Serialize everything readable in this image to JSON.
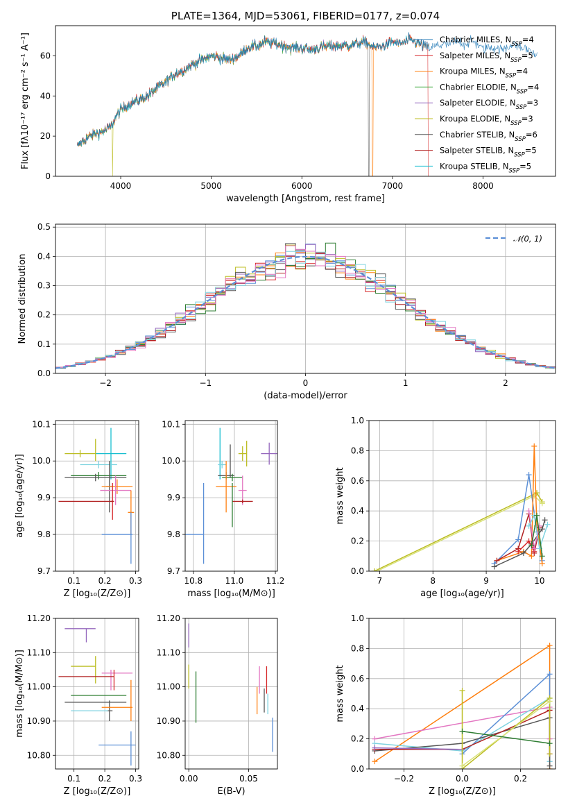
{
  "chart_data": [
    {
      "id": "spectrum",
      "type": "line",
      "title": "PLATE=1364, MJD=53061, FIBERID=0177, z=0.074",
      "xlabel": "wavelength [Angstrom, rest frame]",
      "ylabel": "Flux [fλ10⁻¹⁷ erg cm⁻² s⁻¹ A⁻¹]",
      "xlim": [
        3280,
        8800
      ],
      "ylim": [
        0,
        75
      ],
      "xticks": [
        4000,
        5000,
        6000,
        7000,
        8000
      ],
      "yticks": [
        0,
        20,
        40,
        60
      ],
      "legend_position": "top-right",
      "spectrum_knots": {
        "x": [
          3520,
          3600,
          3700,
          3800,
          3900,
          3950,
          4000,
          4100,
          4200,
          4300,
          4400,
          4500,
          4600,
          4700,
          4800,
          4900,
          5000,
          5100,
          5200,
          5300,
          5400,
          5500,
          5600,
          5700,
          5800,
          5900,
          6000,
          6100,
          6200,
          6300,
          6400,
          6500,
          6600,
          6700,
          6800,
          6900,
          7000,
          7100,
          7200,
          7300,
          7400,
          7500,
          7600,
          7700,
          7800,
          7900,
          8000,
          8100,
          8200,
          8300,
          8400,
          8500,
          8600
        ],
        "y": [
          15,
          18,
          21,
          22,
          25,
          30,
          33,
          36,
          38,
          40,
          44,
          47,
          51,
          53,
          56,
          58,
          60,
          59,
          58,
          60,
          64,
          65,
          67,
          66,
          65,
          64,
          64,
          63,
          64,
          65,
          65,
          65,
          66,
          67,
          64,
          65,
          67,
          66,
          68,
          66,
          64,
          65,
          66,
          67,
          66,
          67,
          64,
          64,
          63,
          65,
          65,
          63,
          60
        ]
      },
      "series": [
        {
          "name": "Chabrier MILES, N",
          "sub": "SSP",
          "suffix": "=4",
          "color": "#1f77b4",
          "dips": [],
          "xmax": 8600
        },
        {
          "name": "Salpeter MILES, N",
          "sub": "SSP",
          "suffix": "=5",
          "color": "#d62728",
          "dips": [
            7400
          ],
          "xmax": 7400
        },
        {
          "name": "Kroupa MILES, N",
          "sub": "SSP",
          "suffix": "=4",
          "color": "#ff7f0e",
          "dips": [
            6780
          ],
          "xmax": 7400
        },
        {
          "name": "Chabrier ELODIE, N",
          "sub": "SSP",
          "suffix": "=4",
          "color": "#2ca02c",
          "dips": [],
          "xmax": 6780
        },
        {
          "name": "Salpeter ELODIE, N",
          "sub": "SSP",
          "suffix": "=3",
          "color": "#9467bd",
          "dips": [],
          "xmax": 6780
        },
        {
          "name": "Kroupa ELODIE, N",
          "sub": "SSP",
          "suffix": "=3",
          "color": "#bcbd22",
          "dips": [
            3910
          ],
          "xmax": 6780
        },
        {
          "name": "Chabrier STELIB, N",
          "sub": "SSP",
          "suffix": "=6",
          "color": "#555555",
          "dips": [
            6740
          ],
          "xmax": 7400
        },
        {
          "name": "Salpeter STELIB, N",
          "sub": "SSP",
          "suffix": "=5",
          "color": "#b22222",
          "dips": [],
          "xmax": 7400
        },
        {
          "name": "Kroupa STELIB, N",
          "sub": "SSP",
          "suffix": "=5",
          "color": "#17becf",
          "dips": [],
          "xmax": 7400
        }
      ]
    },
    {
      "id": "residuals",
      "type": "bar",
      "xlabel": "(data-model)/error",
      "ylabel": "Normed distribution",
      "xlim": [
        -2.5,
        2.5
      ],
      "ylim": [
        0,
        0.51
      ],
      "xticks": [
        -2,
        -1,
        0,
        1,
        2
      ],
      "yticks": [
        0.0,
        0.1,
        0.2,
        0.3,
        0.4,
        0.5
      ],
      "grid": true,
      "legend_position": "top-right",
      "model_curve": {
        "label": "𝒩(0, 1)",
        "mean": 0,
        "sigma": 1,
        "color": "#5b8fd6"
      },
      "bin_width": 0.1,
      "series_colors": [
        "#5b8fd6",
        "#d62728",
        "#ff7f0e",
        "#2e7d32",
        "#9467bd",
        "#bcbd22",
        "#555555",
        "#b22222",
        "#7fd3e0",
        "#e377c2"
      ]
    },
    {
      "id": "age-vs-Z",
      "type": "scatter",
      "xlabel": "Z [log₁₀(Z/Z⊙)]",
      "ylabel": "age  [log₁₀(age/yr)]",
      "xlim": [
        0.04,
        0.31
      ],
      "ylim": [
        9.7,
        10.11
      ],
      "xticks": [
        0.1,
        0.2,
        0.3
      ],
      "yticks": [
        9.7,
        9.8,
        9.9,
        10.0,
        10.1
      ],
      "points": [
        {
          "x": 0.22,
          "y": 10.02,
          "xerr": 0.05,
          "yerr": 0.07,
          "color": "#17becf"
        },
        {
          "x": 0.12,
          "y": 10.02,
          "xerr": 0.05,
          "yerr": 0.01,
          "color": "#bcbd22"
        },
        {
          "x": 0.17,
          "y": 10.03,
          "xerr": 0.0,
          "yerr": 0.03,
          "color": "#bcbd22"
        },
        {
          "x": 0.18,
          "y": 9.99,
          "xerr": 0.06,
          "yerr": 0.01,
          "color": "#7fd3e0"
        },
        {
          "x": 0.18,
          "y": 9.96,
          "xerr": 0.09,
          "yerr": 0.01,
          "color": "#2e7d32"
        },
        {
          "x": 0.17,
          "y": 9.955,
          "xerr": 0.1,
          "yerr": 0.01,
          "color": "#555555"
        },
        {
          "x": 0.215,
          "y": 9.93,
          "xerr": 0.01,
          "yerr": 0.07,
          "color": "#555555"
        },
        {
          "x": 0.24,
          "y": 9.93,
          "xerr": 0.05,
          "yerr": 0.02,
          "color": "#ff7f0e"
        },
        {
          "x": 0.235,
          "y": 9.92,
          "xerr": 0.05,
          "yerr": 0.04,
          "color": "#e377c2"
        },
        {
          "x": 0.225,
          "y": 9.89,
          "xerr": 0.005,
          "yerr": 0.05,
          "color": "#d62728"
        },
        {
          "x": 0.14,
          "y": 9.89,
          "xerr": 0.09,
          "yerr": 0.0,
          "color": "#b22222"
        },
        {
          "x": 0.285,
          "y": 9.86,
          "xerr": 0.01,
          "yerr": 0.06,
          "color": "#ff7f0e"
        },
        {
          "x": 0.24,
          "y": 9.8,
          "xerr": 0.05,
          "yerr": 0.0,
          "color": "#5b8fd6"
        },
        {
          "x": 0.285,
          "y": 9.79,
          "xerr": 0.0,
          "yerr": 0.07,
          "color": "#5b8fd6"
        }
      ]
    },
    {
      "id": "age-vs-mass",
      "type": "scatter",
      "xlabel": "mass [log₁₀(M/M⊙)]",
      "ylabel": "",
      "xlim": [
        10.76,
        11.21
      ],
      "ylim": [
        9.7,
        10.11
      ],
      "xticks": [
        10.8,
        11.0,
        11.2
      ],
      "yticks": [
        9.7,
        9.8,
        9.9,
        10.0,
        10.1
      ],
      "points": [
        {
          "x": 10.93,
          "y": 10.02,
          "xerr": 0.0,
          "yerr": 0.07,
          "color": "#17becf"
        },
        {
          "x": 10.94,
          "y": 9.99,
          "xerr": 0.02,
          "yerr": 0.01,
          "color": "#7fd3e0"
        },
        {
          "x": 10.98,
          "y": 10.0,
          "xerr": 0.0,
          "yerr": 0.045,
          "color": "#555555"
        },
        {
          "x": 11.04,
          "y": 10.02,
          "xerr": 0.02,
          "yerr": 0.02,
          "color": "#bcbd22"
        },
        {
          "x": 11.06,
          "y": 10.02,
          "xerr": 0.0,
          "yerr": 0.035,
          "color": "#bcbd22"
        },
        {
          "x": 11.17,
          "y": 10.02,
          "xerr": 0.04,
          "yerr": 0.03,
          "color": "#9467bd"
        },
        {
          "x": 10.96,
          "y": 9.96,
          "xerr": 0.04,
          "yerr": 0.01,
          "color": "#555555"
        },
        {
          "x": 10.99,
          "y": 9.955,
          "xerr": 0.05,
          "yerr": 0.01,
          "color": "#2e7d32"
        },
        {
          "x": 10.96,
          "y": 9.93,
          "xerr": 0.05,
          "yerr": 0.07,
          "color": "#ff7f0e"
        },
        {
          "x": 11.04,
          "y": 9.92,
          "xerr": 0.02,
          "yerr": 0.04,
          "color": "#e377c2"
        },
        {
          "x": 11.04,
          "y": 9.89,
          "xerr": 0.05,
          "yerr": 0.005,
          "color": "#b22222"
        },
        {
          "x": 10.99,
          "y": 9.88,
          "xerr": 0.0,
          "yerr": 0.06,
          "color": "#2e7d32"
        },
        {
          "x": 10.8,
          "y": 9.8,
          "xerr": 0.05,
          "yerr": 0.0,
          "color": "#5b8fd6"
        },
        {
          "x": 10.85,
          "y": 9.83,
          "xerr": 0.0,
          "yerr": 0.11,
          "color": "#5b8fd6"
        }
      ]
    },
    {
      "id": "weight-vs-age",
      "type": "line",
      "xlabel": "age  [log₁₀(age/yr)]",
      "ylabel": "mass weight",
      "xlim": [
        6.8,
        10.3
      ],
      "ylim": [
        0,
        1.0
      ],
      "xticks": [
        7,
        8,
        9,
        10
      ],
      "yticks": [
        0.0,
        0.2,
        0.4,
        0.6,
        0.8,
        1.0
      ],
      "grid": true,
      "series": [
        {
          "color": "#bcbd22",
          "x": [
            6.9,
            9.95,
            10.05
          ],
          "y": [
            0.0,
            0.52,
            0.46
          ]
        },
        {
          "color": "#d9e27a",
          "x": [
            6.95,
            9.9,
            10.05
          ],
          "y": [
            0.0,
            0.5,
            0.45
          ]
        },
        {
          "color": "#5b8fd6",
          "x": [
            9.15,
            9.6,
            9.8,
            9.95,
            10.05
          ],
          "y": [
            0.05,
            0.21,
            0.64,
            0.26,
            0.07
          ]
        },
        {
          "color": "#ff7f0e",
          "x": [
            9.2,
            9.7,
            9.85,
            9.9,
            9.95,
            10.05
          ],
          "y": [
            0.07,
            0.13,
            0.1,
            0.83,
            0.3,
            0.05
          ]
        },
        {
          "color": "#555555",
          "x": [
            9.15,
            9.7,
            9.85,
            10.05,
            10.1
          ],
          "y": [
            0.03,
            0.12,
            0.18,
            0.28,
            0.34
          ]
        },
        {
          "color": "#b22222",
          "x": [
            9.2,
            9.6,
            9.8,
            9.9,
            10.0
          ],
          "y": [
            0.07,
            0.15,
            0.38,
            0.12,
            0.29
          ]
        },
        {
          "color": "#d62728",
          "x": [
            9.6,
            9.8,
            9.9
          ],
          "y": [
            0.13,
            0.2,
            0.13
          ]
        },
        {
          "color": "#e377c2",
          "x": [
            9.8,
            9.9,
            10.0
          ],
          "y": [
            0.4,
            0.15,
            0.3
          ]
        },
        {
          "color": "#7fd3e0",
          "x": [
            9.8,
            9.9,
            10.0,
            10.15
          ],
          "y": [
            0.3,
            0.37,
            0.15,
            0.31
          ]
        },
        {
          "color": "#2e7d32",
          "x": [
            9.85,
            9.95,
            10.05
          ],
          "y": [
            0.17,
            0.37,
            0.1
          ]
        }
      ]
    },
    {
      "id": "mass-vs-Z",
      "type": "scatter",
      "xlabel": "Z [log₁₀(Z/Z⊙)]",
      "ylabel": "mass [log₁₀(M/M⊙)]",
      "xlim": [
        0.04,
        0.31
      ],
      "ylim": [
        10.76,
        11.2
      ],
      "xticks": [
        0.1,
        0.2,
        0.3
      ],
      "yticks": [
        10.8,
        10.9,
        11.0,
        11.1,
        11.2
      ],
      "points": [
        {
          "x": 0.12,
          "y": 11.17,
          "xerr": 0.05,
          "yerr": 0.0,
          "color": "#9467bd"
        },
        {
          "x": 0.14,
          "y": 11.15,
          "xerr": 0.0,
          "yerr": 0.02,
          "color": "#9467bd"
        },
        {
          "x": 0.13,
          "y": 11.06,
          "xerr": 0.04,
          "yerr": 0.0,
          "color": "#bcbd22"
        },
        {
          "x": 0.17,
          "y": 11.05,
          "xerr": 0.0,
          "yerr": 0.04,
          "color": "#bcbd22"
        },
        {
          "x": 0.24,
          "y": 11.04,
          "xerr": 0.05,
          "yerr": 0.0,
          "color": "#e377c2"
        },
        {
          "x": 0.22,
          "y": 11.02,
          "xerr": 0.0,
          "yerr": 0.03,
          "color": "#e377c2"
        },
        {
          "x": 0.14,
          "y": 11.03,
          "xerr": 0.09,
          "yerr": 0.0,
          "color": "#b22222"
        },
        {
          "x": 0.23,
          "y": 11.02,
          "xerr": 0.0,
          "yerr": 0.03,
          "color": "#d62728"
        },
        {
          "x": 0.18,
          "y": 10.975,
          "xerr": 0.09,
          "yerr": 0.0,
          "color": "#2e7d32"
        },
        {
          "x": 0.17,
          "y": 10.955,
          "xerr": 0.1,
          "yerr": 0.0,
          "color": "#555555"
        },
        {
          "x": 0.215,
          "y": 10.93,
          "xerr": 0.01,
          "yerr": 0.03,
          "color": "#555555"
        },
        {
          "x": 0.24,
          "y": 10.94,
          "xerr": 0.05,
          "yerr": 0.0,
          "color": "#ff7f0e"
        },
        {
          "x": 0.285,
          "y": 10.96,
          "xerr": 0.0,
          "yerr": 0.06,
          "color": "#ff7f0e"
        },
        {
          "x": 0.15,
          "y": 10.93,
          "xerr": 0.06,
          "yerr": 0.0,
          "color": "#7fd3e0"
        },
        {
          "x": 0.24,
          "y": 10.83,
          "xerr": 0.06,
          "yerr": 0.0,
          "color": "#5b8fd6"
        },
        {
          "x": 0.285,
          "y": 10.82,
          "xerr": 0.0,
          "yerr": 0.05,
          "color": "#5b8fd6"
        }
      ]
    },
    {
      "id": "mass-vs-EBV",
      "type": "scatter",
      "xlabel": "E(B-V)",
      "ylabel": "",
      "xlim": [
        -0.003,
        0.074
      ],
      "ylim": [
        10.76,
        11.2
      ],
      "xticks": [
        0.0,
        0.05
      ],
      "yticks": [
        10.8,
        10.9,
        11.0,
        11.1,
        11.2
      ],
      "points": [
        {
          "x": 0.0,
          "y": 11.15,
          "xerr": 0.0,
          "yerr": 0.035,
          "color": "#9467bd"
        },
        {
          "x": 0.0,
          "y": 11.03,
          "xerr": 0.0,
          "yerr": 0.035,
          "color": "#bcbd22"
        },
        {
          "x": 0.006,
          "y": 10.97,
          "xerr": 0.0,
          "yerr": 0.075,
          "color": "#2e7d32"
        },
        {
          "x": 0.057,
          "y": 10.96,
          "xerr": 0.0,
          "yerr": 0.04,
          "color": "#ff7f0e"
        },
        {
          "x": 0.059,
          "y": 11.02,
          "xerr": 0.0,
          "yerr": 0.04,
          "color": "#e377c2"
        },
        {
          "x": 0.063,
          "y": 10.96,
          "xerr": 0.0,
          "yerr": 0.035,
          "color": "#555555"
        },
        {
          "x": 0.065,
          "y": 11.02,
          "xerr": 0.0,
          "yerr": 0.04,
          "color": "#d62728"
        },
        {
          "x": 0.066,
          "y": 10.95,
          "xerr": 0.0,
          "yerr": 0.03,
          "color": "#7fd3e0"
        },
        {
          "x": 0.07,
          "y": 10.86,
          "xerr": 0.0,
          "yerr": 0.05,
          "color": "#5b8fd6"
        }
      ]
    },
    {
      "id": "weight-vs-Z",
      "type": "line",
      "xlabel": "Z [log₁₀(Z/Z⊙)]",
      "ylabel": "mass weight",
      "xlim": [
        -0.32,
        0.32
      ],
      "ylim": [
        0,
        1.0
      ],
      "xticks": [
        -0.2,
        0.0,
        0.2
      ],
      "yticks": [
        0.0,
        0.2,
        0.4,
        0.6,
        0.8,
        1.0
      ],
      "grid": true,
      "series": [
        {
          "color": "#ff7f0e",
          "x": [
            -0.3,
            0.3,
            0.3
          ],
          "y": [
            0.05,
            0.82,
            0.0
          ]
        },
        {
          "color": "#e377c2",
          "x": [
            -0.3,
            0.3,
            0.3
          ],
          "y": [
            0.2,
            0.41,
            0.2
          ]
        },
        {
          "color": "#5b8fd6",
          "x": [
            0.0,
            0.3,
            0.3
          ],
          "y": [
            0.1,
            0.63,
            0.05
          ]
        },
        {
          "color": "#7fd3e0",
          "x": [
            -0.3,
            0.0,
            0.3,
            0.3
          ],
          "y": [
            0.17,
            0.12,
            0.47,
            0.05
          ]
        },
        {
          "color": "#555555",
          "x": [
            -0.3,
            0.0,
            0.3,
            0.3
          ],
          "y": [
            0.12,
            0.17,
            0.34,
            0.02
          ]
        },
        {
          "color": "#b22222",
          "x": [
            -0.3,
            0.0,
            0.3,
            0.3
          ],
          "y": [
            0.13,
            0.13,
            0.39,
            0.1
          ]
        },
        {
          "color": "#9467bd",
          "x": [
            -0.3,
            0.0
          ],
          "y": [
            0.14,
            0.13
          ]
        },
        {
          "color": "#bcbd22",
          "x": [
            0.0,
            0.0,
            0.3,
            0.3
          ],
          "y": [
            0.52,
            0.0,
            0.47,
            0.1
          ]
        },
        {
          "color": "#d9e27a",
          "x": [
            0.0,
            0.3
          ],
          "y": [
            0.02,
            0.45
          ]
        },
        {
          "color": "#2e7d32",
          "x": [
            0.0,
            0.3
          ],
          "y": [
            0.25,
            0.17
          ]
        }
      ]
    }
  ]
}
